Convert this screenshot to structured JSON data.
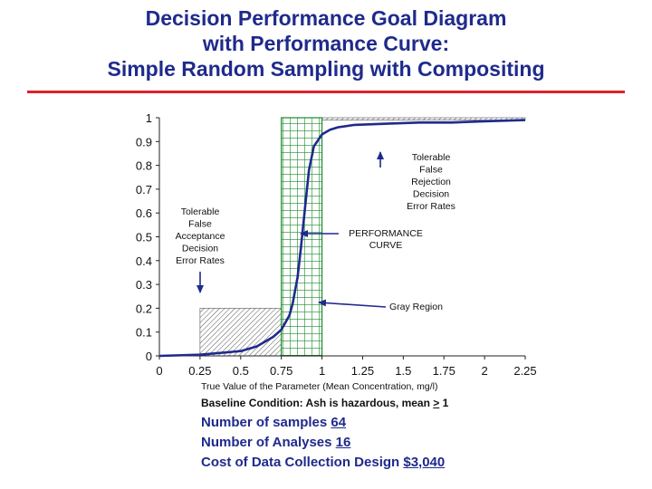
{
  "slide": {
    "title_lines": [
      "Decision Performance Goal Diagram",
      "with Performance Curve:",
      "Simple Random Sampling with Compositing"
    ],
    "baseline_label": "Baseline Condition: Ash is hazardous, mean ",
    "baseline_op": ">",
    "baseline_value": " 1",
    "samples_label": "Number of samples ",
    "samples_value": "64",
    "analyses_label": "Number of Analyses ",
    "analyses_value": "16",
    "cost_label": "Cost of Data Collection Design ",
    "cost_value": "$3,040"
  },
  "colors": {
    "title": "#1f2a8c",
    "rule": "#e0202a",
    "curve": "#1f2a8c",
    "gray_region_grid": "#1c8a2a",
    "hatch": "#555555"
  },
  "chart_data": {
    "type": "line",
    "xlabel": "True Value of the Parameter (Mean Concentration, mg/l)",
    "ylabel": "",
    "xlim": [
      0,
      2.25
    ],
    "ylim": [
      0,
      1
    ],
    "x_ticks": [
      "0",
      "0.25",
      "0.5",
      "0.75",
      "1",
      "1.25",
      "1.5",
      "1.75",
      "2",
      "2.25"
    ],
    "y_ticks": [
      "0",
      "0.1",
      "0.2",
      "0.3",
      "0.4",
      "0.5",
      "0.6",
      "0.7",
      "0.8",
      "0.9",
      "1"
    ],
    "series": [
      {
        "x": [
          0,
          0.25,
          0.5,
          0.6,
          0.7,
          0.75,
          0.8,
          0.82,
          0.85,
          0.87,
          0.9,
          0.92,
          0.95,
          1.0,
          1.05,
          1.1,
          1.2,
          1.4,
          1.6,
          1.8,
          2.0,
          2.25
        ],
        "y": [
          0.0,
          0.005,
          0.02,
          0.04,
          0.08,
          0.11,
          0.17,
          0.22,
          0.33,
          0.45,
          0.65,
          0.78,
          0.88,
          0.93,
          0.95,
          0.96,
          0.97,
          0.975,
          0.98,
          0.98,
          0.985,
          0.99
        ]
      }
    ],
    "gray_region": [
      0.75,
      1.0
    ],
    "tolerable_false_acceptance": {
      "x": [
        0.25,
        0.75
      ],
      "y": 0.2
    },
    "tolerable_false_rejection": {
      "x": [
        1.0,
        2.25
      ],
      "y": 0.99
    },
    "annotations": [
      {
        "lines": [
          "Tolerable",
          "False",
          "Rejection",
          "Decision",
          "Error Rates"
        ]
      },
      {
        "lines": [
          "Tolerable",
          "False",
          "Acceptance",
          "Decision",
          "Error Rates"
        ]
      },
      {
        "lines": [
          "PERFORMANCE",
          "CURVE"
        ]
      },
      {
        "lines": [
          "Gray Region"
        ]
      }
    ]
  }
}
